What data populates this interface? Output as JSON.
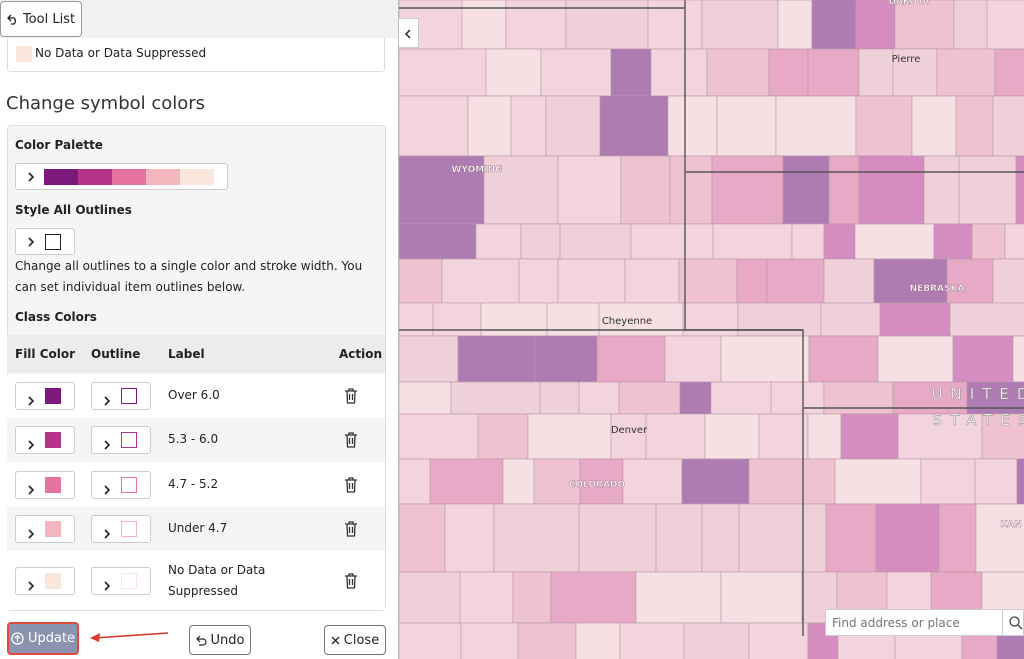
{
  "toolbar": {
    "back_button": "Tool List"
  },
  "legend_item": {
    "label": "No Data or Data Suppressed",
    "color": "#fbe6dd"
  },
  "section_title": "Change symbol colors",
  "palette": {
    "label": "Color Palette",
    "colors": [
      "#7b1a7b",
      "#b5338a",
      "#e6739f",
      "#f2b6bc",
      "#fbe6dd"
    ]
  },
  "outlines": {
    "label": "Style All Outlines",
    "help": "Change all outlines to a single color and stroke width. You can set individual item outlines below."
  },
  "class_colors": {
    "label": "Class Colors",
    "columns": [
      "Fill Color",
      "Outline",
      "Label",
      "Action"
    ],
    "rows": [
      {
        "label": "Over 6.0",
        "color": "#7b1a7b"
      },
      {
        "label": "5.3 - 6.0",
        "color": "#b5338a"
      },
      {
        "label": "4.7 - 5.2",
        "color": "#e6739f"
      },
      {
        "label": "Under 4.7",
        "color": "#f2b6bc"
      },
      {
        "label": "No Data or Data Suppressed",
        "color": "#fbe6dd"
      }
    ]
  },
  "footer": {
    "update": "Update",
    "undo": "Undo",
    "close": "Close"
  },
  "map": {
    "labels": [
      "DAKOTA",
      "Pierre",
      "WYOMING",
      "NEBRASKA",
      "UNITED",
      "STATES",
      "Cheyenne",
      "Denver",
      "COLORADO",
      "KAN"
    ],
    "search_placeholder": "Find address or place"
  }
}
